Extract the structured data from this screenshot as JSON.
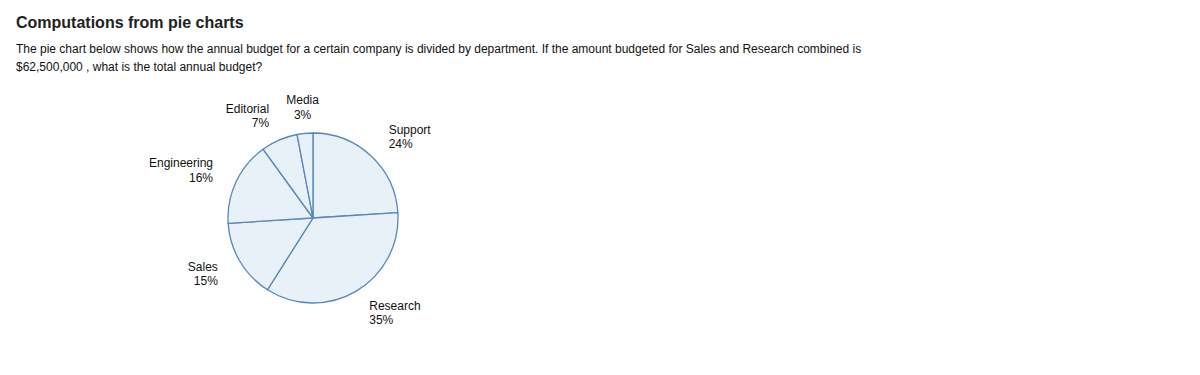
{
  "chart_data": {
    "type": "pie",
    "title": "Computations from pie charts",
    "annotations": [
      "The pie chart below shows how the annual budget for a certain company is divided by department. If the amount budgeted for Sales and Research combined is",
      "$62,500,000 , what is the total annual budget?"
    ],
    "categories": [
      "Support",
      "Research",
      "Sales",
      "Engineering",
      "Editorial",
      "Media"
    ],
    "values": [
      24,
      35,
      15,
      16,
      7,
      3
    ],
    "value_labels": [
      "24%",
      "35%",
      "15%",
      "16%",
      "7%",
      "3%"
    ],
    "data_labels": true,
    "color": "#e8f0f8"
  }
}
